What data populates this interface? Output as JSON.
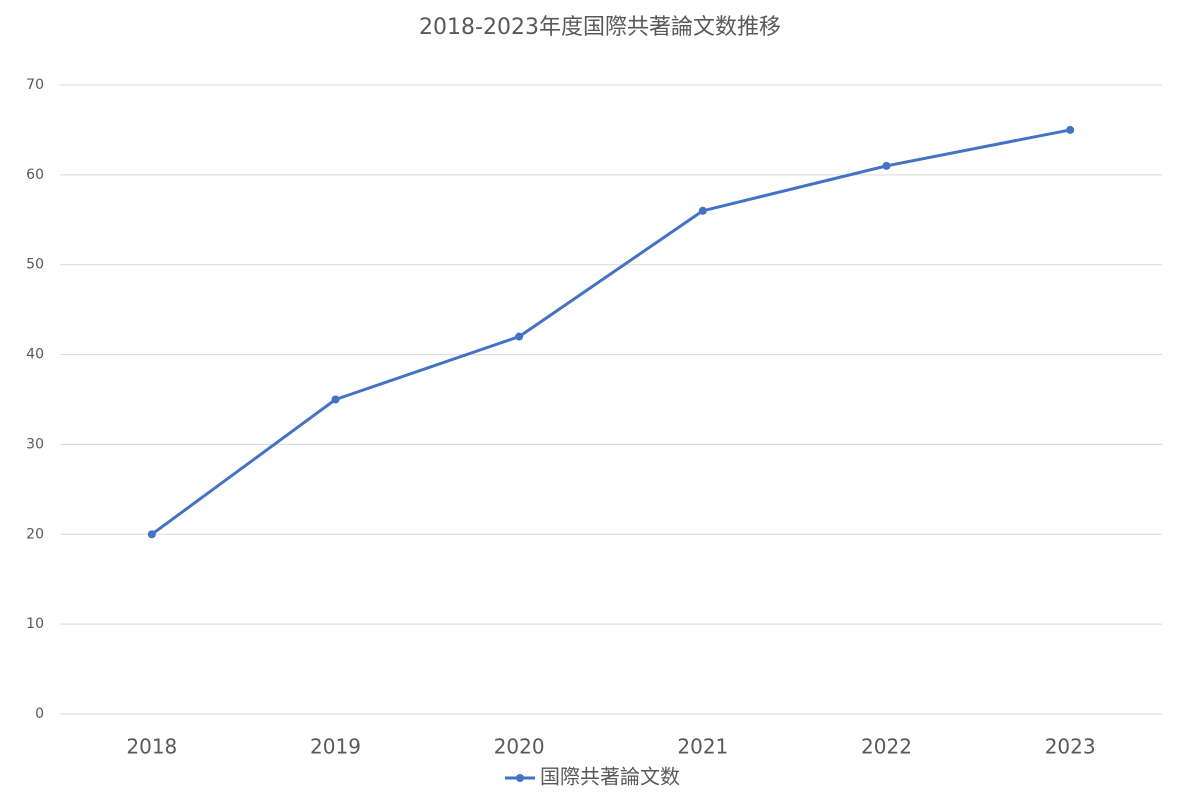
{
  "chart_data": {
    "type": "line",
    "title": "2018-2023年度国際共著論文数推移",
    "categories": [
      "2018",
      "2019",
      "2020",
      "2021",
      "2022",
      "2023"
    ],
    "series": [
      {
        "name": "国際共著論文数",
        "color": "#4472c4",
        "values": [
          20,
          35,
          42,
          56,
          61,
          65
        ]
      }
    ],
    "ylim": [
      0,
      70
    ],
    "yticks": [
      0,
      10,
      20,
      30,
      40,
      50,
      60,
      70
    ],
    "grid": true,
    "legend": "bottom"
  }
}
